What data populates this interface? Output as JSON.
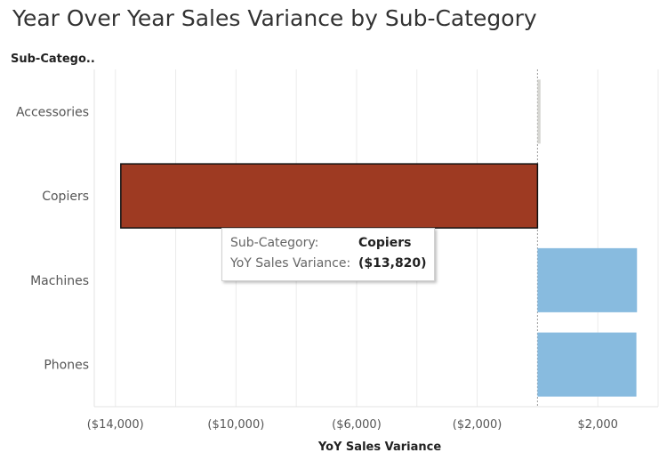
{
  "title": "Year Over Year Sales Variance by Sub-Category",
  "row_header": "Sub-Catego..",
  "tooltip": {
    "field_label": "Sub-Category:",
    "field_value": "Copiers",
    "measure_label": "YoY Sales Variance:",
    "measure_value": "($13,820)"
  },
  "colors": {
    "negative_highlight": "#9e3a22",
    "positive": "#88bbdf",
    "neutral": "#d6d6d2",
    "grid": "#ebebeb",
    "zero_line": "#9a9a9a"
  },
  "chart_data": {
    "type": "bar",
    "orientation": "horizontal",
    "title": "Year Over Year Sales Variance by Sub-Category",
    "xlabel": "YoY Sales Variance",
    "ylabel": "Sub-Catego..",
    "categories": [
      "Accessories",
      "Copiers",
      "Machines",
      "Phones"
    ],
    "values": [
      100,
      -13820,
      3300,
      3280
    ],
    "xlim": [
      -14700,
      4000
    ],
    "x_ticks": [
      -14000,
      -10000,
      -6000,
      -2000,
      2000
    ],
    "x_tick_labels": [
      "($14,000)",
      "($10,000)",
      "($6,000)",
      "($2,000)",
      "$2,000"
    ],
    "highlighted_category": "Copiers",
    "grid": true
  }
}
